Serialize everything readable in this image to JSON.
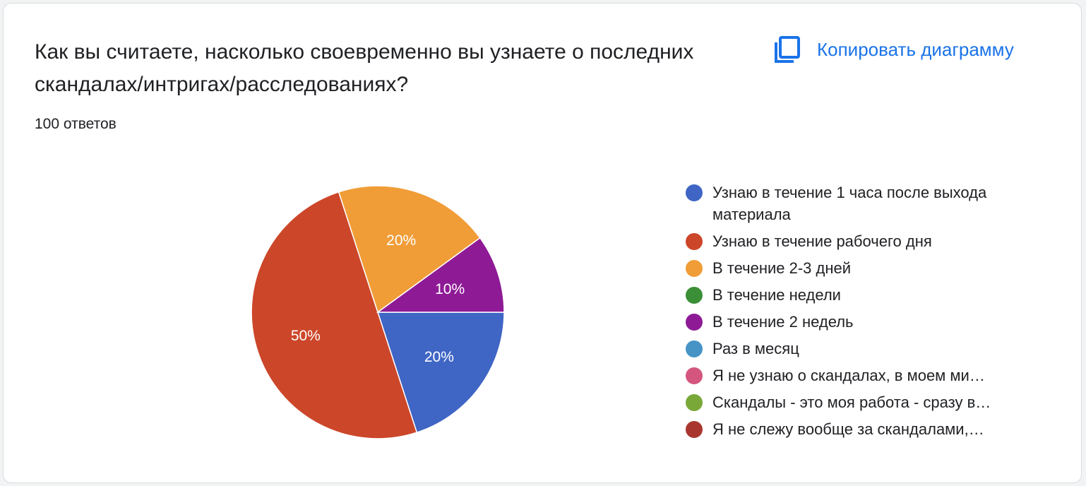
{
  "card": {
    "question": "Как вы считаете, насколько своевременно вы узнаете о последних скандалах/интригах/расследованиях?",
    "responses_count": "100 ответов",
    "copy_label": "Копировать диаграмму",
    "copy_icon": "copy-icon"
  },
  "colors": {
    "accent": "#1a73e8"
  },
  "chart_data": {
    "type": "pie",
    "categories": [
      "Узнаю в течение 1 часа после выхода материала",
      "Узнаю в течение рабочего дня",
      "В течение 2-3 дней",
      "В течение недели",
      "В течение 2 недель",
      "Раз в месяц",
      "Я не узнаю о скандалах, в моем ми…",
      "Скандалы - это моя работа - сразу в…",
      "Я не слежу вообще за скандалами,…"
    ],
    "values": [
      20,
      50,
      20,
      0,
      10,
      0,
      0,
      0,
      0
    ],
    "labels": [
      "20%",
      "50%",
      "20%",
      "",
      "10%",
      "",
      "",
      "",
      ""
    ],
    "colors": [
      "#3f65c5",
      "#cc4629",
      "#f09d38",
      "#3b8f37",
      "#8e1a96",
      "#4694c6",
      "#d4567e",
      "#79a838",
      "#a8362f"
    ],
    "legend_position": "right",
    "start": "3 o'clock",
    "direction": "clockwise"
  }
}
